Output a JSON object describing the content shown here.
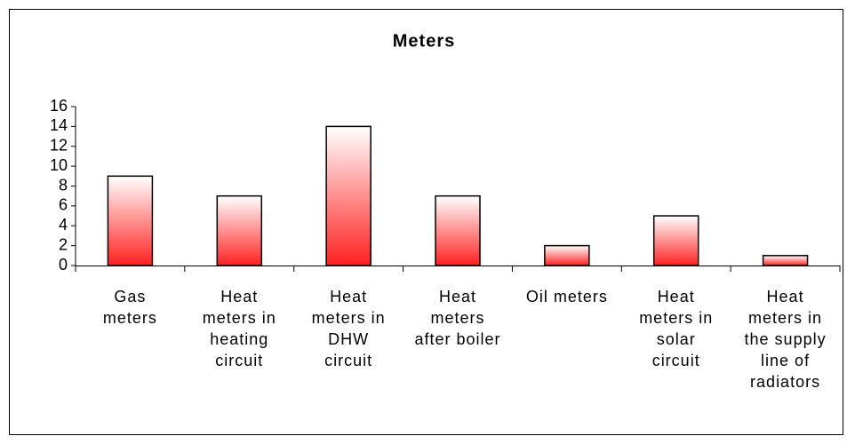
{
  "chart_data": {
    "type": "bar",
    "title": "Meters",
    "categories": [
      "Gas meters",
      "Heat meters in heating circuit",
      "Heat meters in DHW circuit",
      "Heat meters after boiler",
      "Oil meters",
      "Heat meters in solar circuit",
      "Heat meters in the supply line of radiators"
    ],
    "values": [
      9,
      7,
      14,
      7,
      2,
      5,
      1
    ],
    "color": "#ff2020",
    "ylim": [
      0,
      16
    ],
    "yticks": [
      0,
      2,
      4,
      6,
      8,
      10,
      12,
      14,
      16
    ],
    "grid": false
  }
}
